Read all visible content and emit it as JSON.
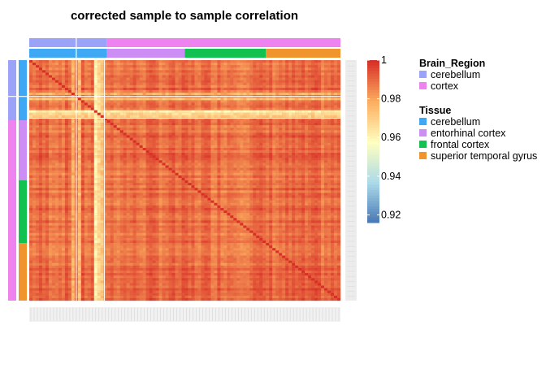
{
  "chart_data": {
    "type": "heatmap",
    "title": "corrected sample to sample correlation",
    "color_scale": {
      "min": 0.916,
      "max": 1,
      "ticks": [
        1,
        0.98,
        0.96,
        0.94,
        0.92
      ],
      "tick_labels": [
        "1",
        "0.98",
        "0.96",
        "0.94",
        "0.92"
      ],
      "colors": [
        "#4575b4",
        "#abd9e9",
        "#ffffbf",
        "#fdae61",
        "#d73027"
      ]
    },
    "samples": {
      "count": 96,
      "typical_correlation": 0.99,
      "diagonal": 1
    },
    "annotations": [
      {
        "name": "Brain_Region",
        "levels": [
          {
            "label": "cerebellum",
            "color": "#9aa3f7",
            "samples": 24
          },
          {
            "label": "cortex",
            "color": "#ee82ee",
            "samples": 72
          }
        ]
      },
      {
        "name": "Tissue",
        "levels": [
          {
            "label": "cerebellum",
            "color": "#3ea8f5",
            "samples": 24
          },
          {
            "label": "entorhinal cortex",
            "color": "#cc8ef5",
            "samples": 24
          },
          {
            "label": "frontal cortex",
            "color": "#12c150",
            "samples": 25
          },
          {
            "label": "superior temporal gyrus",
            "color": "#f0952e",
            "samples": 23
          }
        ]
      }
    ]
  }
}
